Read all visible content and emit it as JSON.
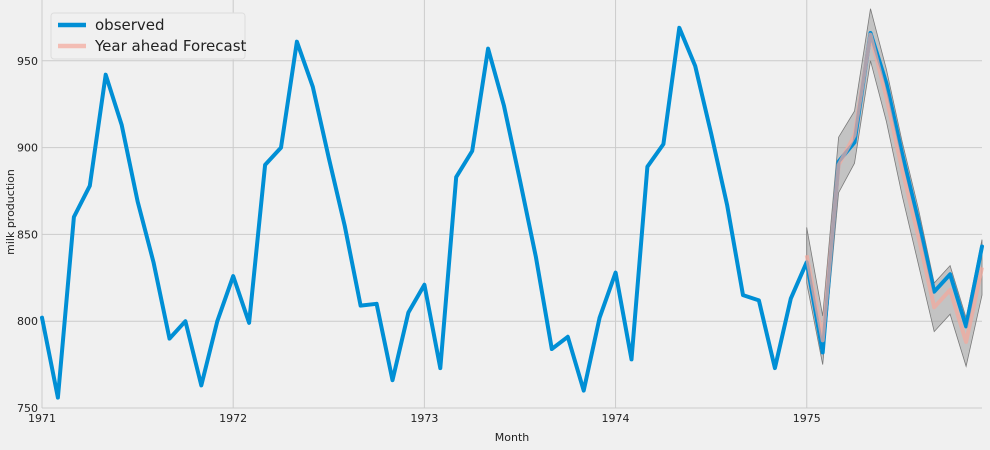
{
  "chart_data": {
    "type": "line",
    "title": "",
    "xlabel": "Month",
    "ylabel": "milk production",
    "xlim": [
      "1971-01",
      "1975-12"
    ],
    "ylim": [
      750,
      985
    ],
    "x_ticks": [
      {
        "date": "1971-01",
        "label": "1971"
      },
      {
        "date": "1972-01",
        "label": "1972"
      },
      {
        "date": "1973-01",
        "label": "1973"
      },
      {
        "date": "1974-01",
        "label": "1974"
      },
      {
        "date": "1975-01",
        "label": "1975"
      }
    ],
    "y_ticks": [
      750,
      800,
      850,
      900,
      950
    ],
    "grid": true,
    "legend_position": "top-left",
    "series": [
      {
        "name": "observed",
        "color": "#008fd5",
        "dates": [
          "1971-01",
          "1971-02",
          "1971-03",
          "1971-04",
          "1971-05",
          "1971-06",
          "1971-07",
          "1971-08",
          "1971-09",
          "1971-10",
          "1971-11",
          "1971-12",
          "1972-01",
          "1972-02",
          "1972-03",
          "1972-04",
          "1972-05",
          "1972-06",
          "1972-07",
          "1972-08",
          "1972-09",
          "1972-10",
          "1972-11",
          "1972-12",
          "1973-01",
          "1973-02",
          "1973-03",
          "1973-04",
          "1973-05",
          "1973-06",
          "1973-07",
          "1973-08",
          "1973-09",
          "1973-10",
          "1973-11",
          "1973-12",
          "1974-01",
          "1974-02",
          "1974-03",
          "1974-04",
          "1974-05",
          "1974-06",
          "1974-07",
          "1974-08",
          "1974-09",
          "1974-10",
          "1974-11",
          "1974-12",
          "1975-01",
          "1975-02",
          "1975-03",
          "1975-04",
          "1975-05",
          "1975-06",
          "1975-07",
          "1975-08",
          "1975-09",
          "1975-10",
          "1975-11",
          "1975-12"
        ],
        "values": [
          802,
          756,
          860,
          878,
          942,
          913,
          869,
          834,
          790,
          800,
          763,
          800,
          826,
          799,
          890,
          900,
          961,
          935,
          894,
          855,
          809,
          810,
          766,
          805,
          821,
          773,
          883,
          898,
          957,
          924,
          881,
          837,
          784,
          791,
          760,
          802,
          828,
          778,
          889,
          902,
          969,
          947,
          908,
          867,
          815,
          812,
          773,
          813,
          834,
          782,
          892,
          903,
          966,
          937,
          896,
          858,
          817,
          827,
          797,
          843
        ]
      },
      {
        "name": "Year ahead Forecast",
        "color": "#f5a89b",
        "dates": [
          "1975-01",
          "1975-02",
          "1975-03",
          "1975-04",
          "1975-05",
          "1975-06",
          "1975-07",
          "1975-08",
          "1975-09",
          "1975-10",
          "1975-11",
          "1975-12"
        ],
        "values": [
          838,
          789,
          890,
          907,
          965,
          929,
          887,
          849,
          808,
          818,
          788,
          831
        ],
        "ci_lower": [
          822,
          775,
          874,
          891,
          950,
          915,
          872,
          833,
          794,
          804,
          774,
          815
        ],
        "ci_upper": [
          854,
          803,
          906,
          921,
          980,
          945,
          903,
          865,
          822,
          832,
          802,
          847
        ]
      }
    ]
  }
}
